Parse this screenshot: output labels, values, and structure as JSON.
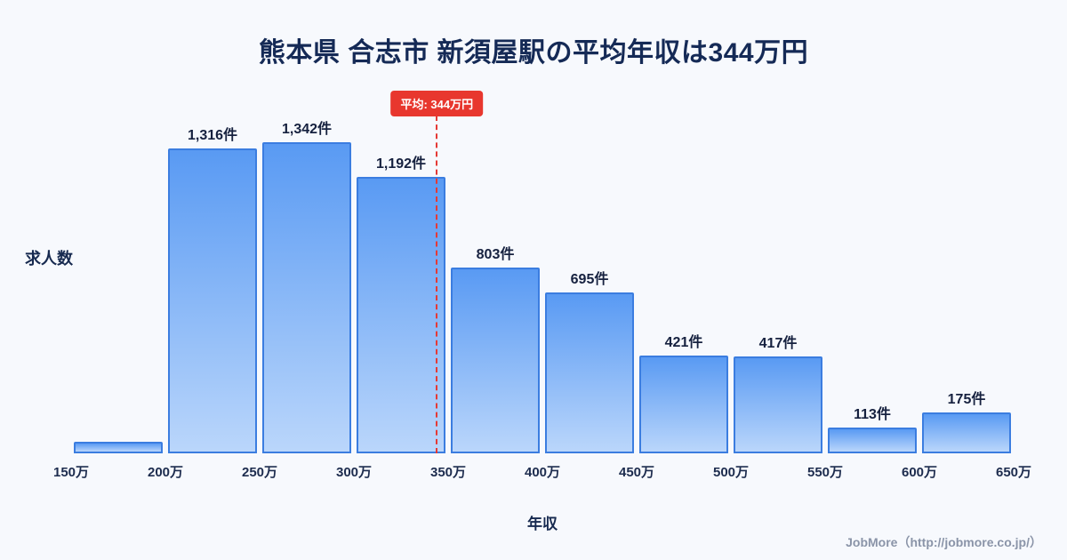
{
  "title": "熊本県 合志市 新須屋駅の平均年収は344万円",
  "chart_data": {
    "type": "bar",
    "title": "熊本県 合志市 新須屋駅の平均年収は344万円",
    "xlabel": "年収",
    "ylabel": "求人数",
    "x_ticks": [
      "150万",
      "200万",
      "250万",
      "300万",
      "350万",
      "400万",
      "450万",
      "500万",
      "550万",
      "600万",
      "650万"
    ],
    "x_range": [
      150,
      650
    ],
    "bin_width": 50,
    "values": [
      50,
      1316,
      1342,
      1192,
      803,
      695,
      421,
      417,
      113,
      175
    ],
    "labels": [
      "",
      "1,316件",
      "1,342件",
      "1,192件",
      "803件",
      "695件",
      "421件",
      "417件",
      "113件",
      "175件"
    ],
    "average": {
      "value": 344,
      "label": "平均: 344万円"
    },
    "legend": "none",
    "grid": "off",
    "colors": {
      "bar_top": "#599af3",
      "bar_bottom": "#bad6fb",
      "bar_border": "#3b7de0",
      "avg_line": "#e53935",
      "avg_badge_bg": "#e8372e",
      "avg_badge_text": "#ffffff",
      "title_text": "#152a56",
      "background": "#f7f9fd"
    }
  },
  "footer": {
    "credit": "JobMore（http://jobmore.co.jp/）"
  }
}
